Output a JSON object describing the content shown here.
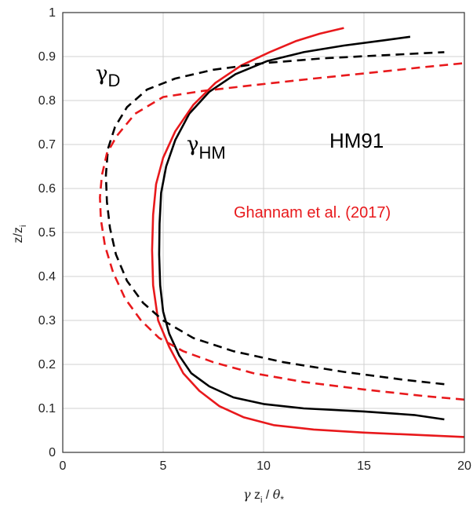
{
  "chart_data": {
    "type": "line",
    "xlabel": "γ z_i / θ_*",
    "ylabel": "z/z_i",
    "xlim": [
      0,
      20
    ],
    "ylim": [
      0,
      1
    ],
    "xticks": [
      0,
      5,
      10,
      15,
      20
    ],
    "yticks": [
      0,
      0.1,
      0.2,
      0.3,
      0.4,
      0.5,
      0.6,
      0.7,
      0.8,
      0.9,
      1
    ],
    "grid": true,
    "series": [
      {
        "color": "#000000",
        "dash": false,
        "points": [
          [
            19.0,
            0.075
          ],
          [
            17.5,
            0.085
          ],
          [
            15.0,
            0.093
          ],
          [
            12.0,
            0.1
          ],
          [
            10.0,
            0.11
          ],
          [
            8.5,
            0.125
          ],
          [
            7.3,
            0.15
          ],
          [
            6.4,
            0.18
          ],
          [
            5.8,
            0.22
          ],
          [
            5.3,
            0.27
          ],
          [
            5.0,
            0.32
          ],
          [
            4.85,
            0.38
          ],
          [
            4.8,
            0.45
          ],
          [
            4.82,
            0.52
          ],
          [
            4.9,
            0.59
          ],
          [
            5.15,
            0.65
          ],
          [
            5.6,
            0.71
          ],
          [
            6.3,
            0.77
          ],
          [
            7.3,
            0.82
          ],
          [
            8.6,
            0.86
          ],
          [
            10.2,
            0.89
          ],
          [
            12.0,
            0.91
          ],
          [
            14.0,
            0.925
          ],
          [
            16.0,
            0.937
          ],
          [
            17.3,
            0.945
          ]
        ]
      },
      {
        "color": "#e8191c",
        "dash": false,
        "points": [
          [
            20.0,
            0.035
          ],
          [
            17.5,
            0.04
          ],
          [
            15.0,
            0.045
          ],
          [
            12.5,
            0.052
          ],
          [
            10.5,
            0.062
          ],
          [
            9.0,
            0.08
          ],
          [
            7.8,
            0.105
          ],
          [
            6.8,
            0.14
          ],
          [
            6.0,
            0.18
          ],
          [
            5.3,
            0.24
          ],
          [
            4.75,
            0.3
          ],
          [
            4.5,
            0.38
          ],
          [
            4.45,
            0.46
          ],
          [
            4.5,
            0.54
          ],
          [
            4.65,
            0.61
          ],
          [
            5.0,
            0.67
          ],
          [
            5.6,
            0.73
          ],
          [
            6.5,
            0.79
          ],
          [
            7.6,
            0.84
          ],
          [
            8.9,
            0.88
          ],
          [
            10.3,
            0.91
          ],
          [
            11.6,
            0.935
          ],
          [
            12.8,
            0.952
          ],
          [
            14.0,
            0.965
          ]
        ]
      },
      {
        "color": "#000000",
        "dash": true,
        "points": [
          [
            19.0,
            0.155
          ],
          [
            17.0,
            0.165
          ],
          [
            14.0,
            0.183
          ],
          [
            11.0,
            0.205
          ],
          [
            8.5,
            0.23
          ],
          [
            6.5,
            0.26
          ],
          [
            5.0,
            0.3
          ],
          [
            4.0,
            0.34
          ],
          [
            3.2,
            0.39
          ],
          [
            2.65,
            0.45
          ],
          [
            2.35,
            0.51
          ],
          [
            2.2,
            0.57
          ],
          [
            2.15,
            0.63
          ],
          [
            2.25,
            0.69
          ],
          [
            2.6,
            0.74
          ],
          [
            3.2,
            0.785
          ],
          [
            4.2,
            0.825
          ],
          [
            5.6,
            0.85
          ],
          [
            7.5,
            0.87
          ],
          [
            10.0,
            0.885
          ],
          [
            13.0,
            0.896
          ],
          [
            16.0,
            0.903
          ],
          [
            19.0,
            0.91
          ]
        ]
      },
      {
        "color": "#e8191c",
        "dash": true,
        "points": [
          [
            20.0,
            0.12
          ],
          [
            18.0,
            0.128
          ],
          [
            15.0,
            0.143
          ],
          [
            12.0,
            0.16
          ],
          [
            9.5,
            0.18
          ],
          [
            7.5,
            0.205
          ],
          [
            6.0,
            0.23
          ],
          [
            4.8,
            0.26
          ],
          [
            3.9,
            0.3
          ],
          [
            3.1,
            0.35
          ],
          [
            2.5,
            0.41
          ],
          [
            2.1,
            0.47
          ],
          [
            1.9,
            0.53
          ],
          [
            1.85,
            0.58
          ],
          [
            1.95,
            0.63
          ],
          [
            2.2,
            0.68
          ],
          [
            2.7,
            0.72
          ],
          [
            3.6,
            0.77
          ],
          [
            5.0,
            0.808
          ],
          [
            7.0,
            0.822
          ],
          [
            9.5,
            0.835
          ],
          [
            12.5,
            0.85
          ],
          [
            15.5,
            0.864
          ],
          [
            18.0,
            0.876
          ],
          [
            20.0,
            0.885
          ]
        ]
      }
    ]
  },
  "annotations": {
    "gamma_d_symbol": "γ",
    "gamma_d_sub": "D",
    "gamma_hm_symbol": "γ",
    "gamma_hm_sub": "HM",
    "hm91": "HM91",
    "ghannam": "Ghannam et al. (2017)"
  },
  "axes": {
    "ylabel_main": "z/z",
    "ylabel_sub": "i",
    "xlabel_gamma": "γ",
    "xlabel_z": " z",
    "xlabel_sub": "i",
    "xlabel_slash": " / ",
    "xlabel_theta": "θ",
    "xlabel_star": "*"
  },
  "colors": {
    "black": "#000000",
    "red": "#e8191c",
    "grid": "#d0d0d0"
  }
}
